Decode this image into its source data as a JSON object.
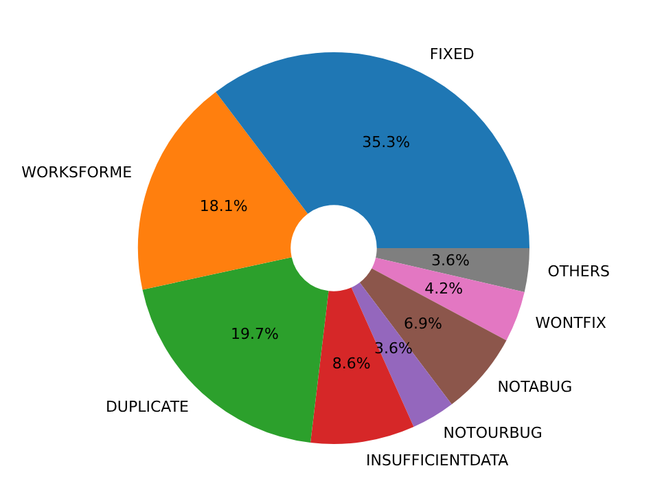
{
  "chart_data": {
    "type": "donut",
    "categories": [
      "FIXED",
      "WORKSFORME",
      "DUPLICATE",
      "INSUFFICIENTDATA",
      "NOTOURBUG",
      "NOTABUG",
      "WONTFIX",
      "OTHERS"
    ],
    "values": [
      35.3,
      18.1,
      19.7,
      8.6,
      3.6,
      6.9,
      4.2,
      3.6
    ],
    "colors": [
      "#1f77b4",
      "#ff7f0e",
      "#2ca02c",
      "#d62728",
      "#9467bd",
      "#8c564b",
      "#e377c2",
      "#7f7f7f"
    ],
    "value_labels": [
      "35.3%",
      "18.1%",
      "19.7%",
      "8.6%",
      "3.6%",
      "6.9%",
      "4.2%",
      "3.6%"
    ],
    "legend": false
  }
}
